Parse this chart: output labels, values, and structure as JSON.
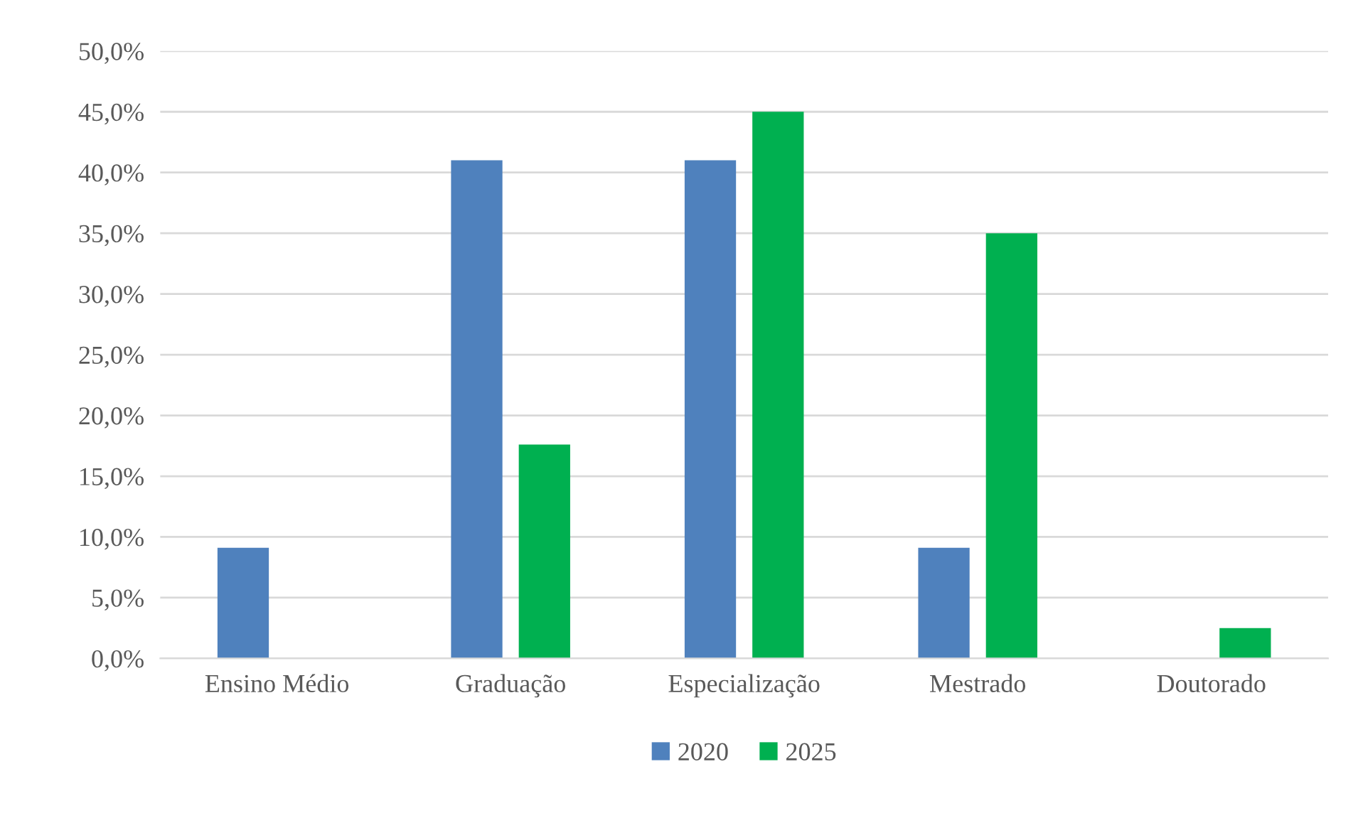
{
  "chart_data": {
    "type": "bar",
    "categories": [
      "Ensino Médio",
      "Graduação",
      "Especialização",
      "Mestrado",
      "Doutorado"
    ],
    "series": [
      {
        "name": "2020",
        "color": "#4f81bd",
        "values": [
          9.1,
          41.0,
          41.0,
          9.1,
          null
        ]
      },
      {
        "name": "2025",
        "color": "#00b050",
        "values": [
          null,
          17.6,
          45.0,
          35.0,
          2.5
        ]
      }
    ],
    "ylim": [
      0,
      50
    ],
    "yticks": [
      {
        "value": 0,
        "label": "0,0%"
      },
      {
        "value": 5,
        "label": "5,0%"
      },
      {
        "value": 10,
        "label": "10,0%"
      },
      {
        "value": 15,
        "label": "15,0%"
      },
      {
        "value": 20,
        "label": "20,0%"
      },
      {
        "value": 25,
        "label": "25,0%"
      },
      {
        "value": 30,
        "label": "30,0%"
      },
      {
        "value": 35,
        "label": "35,0%"
      },
      {
        "value": 40,
        "label": "40,0%"
      },
      {
        "value": 45,
        "label": "45,0%"
      },
      {
        "value": 50,
        "label": "50,0%"
      }
    ],
    "grid": "y",
    "legend": "bottom"
  }
}
